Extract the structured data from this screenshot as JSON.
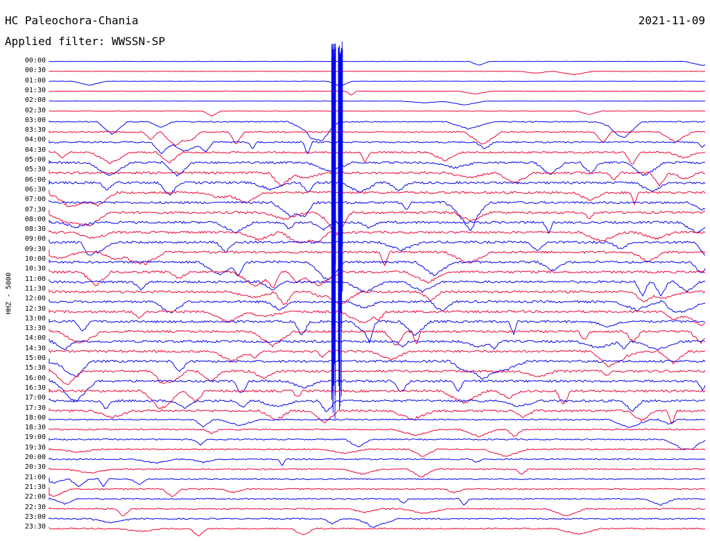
{
  "header": {
    "station": "HC Paleochora-Chania",
    "date": "2021-11-09",
    "filter": "Applied filter: WWSSN-SP"
  },
  "axis": {
    "channel_label": "HHZ - 5000",
    "time_labels": [
      "00:00",
      "00:30",
      "01:00",
      "01:30",
      "02:00",
      "02:30",
      "03:00",
      "03:30",
      "04:00",
      "04:30",
      "05:00",
      "05:30",
      "06:00",
      "06:30",
      "07:00",
      "07:30",
      "08:00",
      "08:30",
      "09:00",
      "09:30",
      "10:00",
      "10:30",
      "11:00",
      "11:30",
      "12:00",
      "12:30",
      "13:00",
      "13:30",
      "14:00",
      "14:30",
      "15:00",
      "15:30",
      "16:00",
      "16:30",
      "17:00",
      "17:30",
      "18:00",
      "18:30",
      "19:00",
      "19:30",
      "20:00",
      "20:30",
      "21:00",
      "21:30",
      "22:00",
      "22:30",
      "23:00",
      "23:30"
    ]
  },
  "colors": {
    "even_trace": "#0000ee",
    "odd_trace": "#ee0033"
  }
}
